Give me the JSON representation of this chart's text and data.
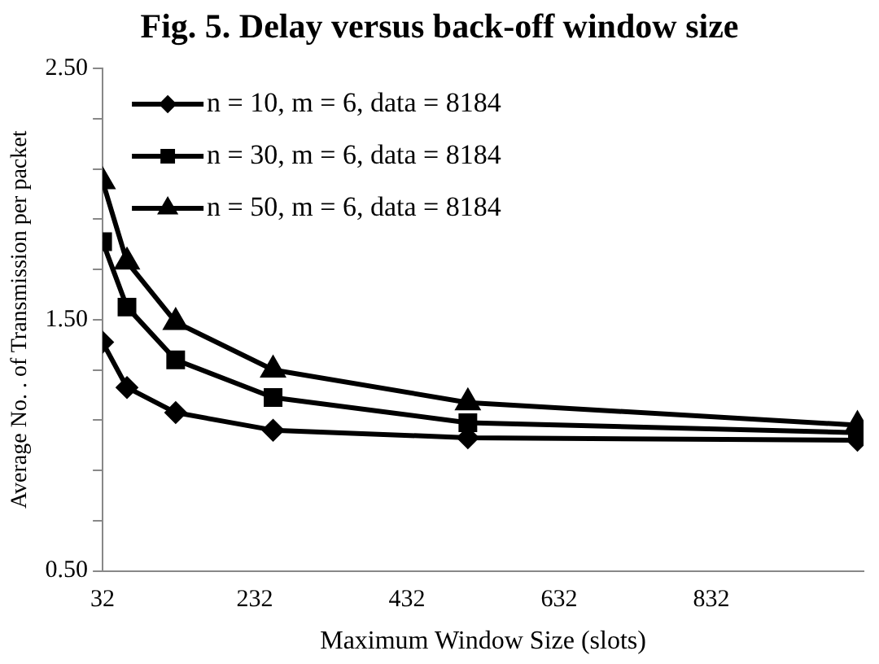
{
  "chart_data": {
    "type": "line",
    "title": "Fig. 5. Delay versus back-off window size",
    "xlabel": "Maximum Window Size (slots)",
    "ylabel": "Average No. . of Transmission per packet",
    "x": [
      32,
      64,
      128,
      256,
      512,
      1024
    ],
    "xlim": [
      32,
      1032
    ],
    "xticks": [
      32,
      232,
      432,
      632,
      832
    ],
    "ylim": [
      0.5,
      2.5
    ],
    "yticks": [
      {
        "value": 0.5,
        "label": "0.50"
      },
      {
        "value": 0.7,
        "label": null
      },
      {
        "value": 0.9,
        "label": null
      },
      {
        "value": 1.1,
        "label": null
      },
      {
        "value": 1.3,
        "label": null
      },
      {
        "value": 1.5,
        "label": "1.50"
      },
      {
        "value": 1.7,
        "label": null
      },
      {
        "value": 1.9,
        "label": null
      },
      {
        "value": 2.1,
        "label": null
      },
      {
        "value": 2.3,
        "label": null
      },
      {
        "value": 2.5,
        "label": "2.50"
      }
    ],
    "grid": false,
    "legend": "top left",
    "line_style": "solid",
    "series": [
      {
        "name": "n = 10, m = 6, data = 8184",
        "color": "#000000",
        "marker": "diamond",
        "values": [
          1.41,
          1.23,
          1.13,
          1.06,
          1.03,
          1.02
        ]
      },
      {
        "name": "n = 30, m = 6, data = 8184",
        "color": "#000000",
        "marker": "square",
        "values": [
          1.81,
          1.55,
          1.34,
          1.19,
          1.09,
          1.05
        ]
      },
      {
        "name": "n = 50, m = 6, data = 8184",
        "color": "#000000",
        "marker": "triangle",
        "values": [
          2.05,
          1.73,
          1.49,
          1.3,
          1.17,
          1.08
        ]
      }
    ]
  }
}
